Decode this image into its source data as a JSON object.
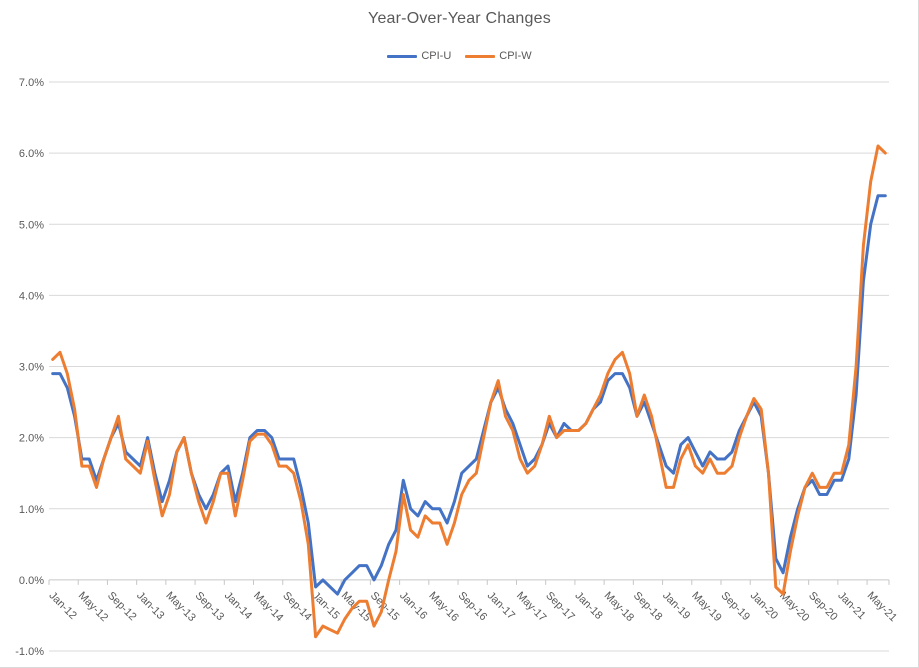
{
  "title": "Year-Over-Year Changes",
  "legend": {
    "items": [
      {
        "label": "CPI-U",
        "color": "#4472C4"
      },
      {
        "label": "CPI-W",
        "color": "#ED7D31"
      }
    ]
  },
  "colors": {
    "gridline": "#d9d9d9",
    "axis_line": "#c6c6c6",
    "tick_label": "#595959",
    "title_text": "#595959",
    "series_blue": "#4472C4",
    "series_orange": "#ED7D31"
  },
  "chart_data": {
    "type": "line",
    "title": "Year-Over-Year Changes",
    "xlabel": "",
    "ylabel": "",
    "grid": true,
    "legend_position": "top",
    "ylim": [
      -1.0,
      7.0
    ],
    "y_tick_values": [
      7,
      6,
      5,
      4,
      3,
      2,
      1,
      0,
      -1
    ],
    "y_tick_labels": [
      "7.0%",
      "6.0%",
      "5.0%",
      "4.0%",
      "3.0%",
      "2.0%",
      "1.0%",
      "0.0%",
      "-1.0%"
    ],
    "x_tick_every": 4,
    "x_tick_labels": [
      "Jan-12",
      "May-12",
      "Sep-12",
      "Jan-13",
      "May-13",
      "Sep-13",
      "Jan-14",
      "May-14",
      "Sep-14",
      "Jan-15",
      "May-15",
      "Sep-15",
      "Jan-16",
      "May-16",
      "Sep-16",
      "Jan-17",
      "May-17",
      "Sep-17",
      "Jan-18",
      "May-18",
      "Sep-18",
      "Jan-19",
      "May-19",
      "Sep-19",
      "Jan-20",
      "May-20",
      "Sep-20",
      "Jan-21",
      "May-21"
    ],
    "x": [
      "Jan-12",
      "Feb-12",
      "Mar-12",
      "Apr-12",
      "May-12",
      "Jun-12",
      "Jul-12",
      "Aug-12",
      "Sep-12",
      "Oct-12",
      "Nov-12",
      "Dec-12",
      "Jan-13",
      "Feb-13",
      "Mar-13",
      "Apr-13",
      "May-13",
      "Jun-13",
      "Jul-13",
      "Aug-13",
      "Sep-13",
      "Oct-13",
      "Nov-13",
      "Dec-13",
      "Jan-14",
      "Feb-14",
      "Mar-14",
      "Apr-14",
      "May-14",
      "Jun-14",
      "Jul-14",
      "Aug-14",
      "Sep-14",
      "Oct-14",
      "Nov-14",
      "Dec-14",
      "Jan-15",
      "Feb-15",
      "Mar-15",
      "Apr-15",
      "May-15",
      "Jun-15",
      "Jul-15",
      "Aug-15",
      "Sep-15",
      "Oct-15",
      "Nov-15",
      "Dec-15",
      "Jan-16",
      "Feb-16",
      "Mar-16",
      "Apr-16",
      "May-16",
      "Jun-16",
      "Jul-16",
      "Aug-16",
      "Sep-16",
      "Oct-16",
      "Nov-16",
      "Dec-16",
      "Jan-17",
      "Feb-17",
      "Mar-17",
      "Apr-17",
      "May-17",
      "Jun-17",
      "Jul-17",
      "Aug-17",
      "Sep-17",
      "Oct-17",
      "Nov-17",
      "Dec-17",
      "Jan-18",
      "Feb-18",
      "Mar-18",
      "Apr-18",
      "May-18",
      "Jun-18",
      "Jul-18",
      "Aug-18",
      "Sep-18",
      "Oct-18",
      "Nov-18",
      "Dec-18",
      "Jan-19",
      "Feb-19",
      "Mar-19",
      "Apr-19",
      "May-19",
      "Jun-19",
      "Jul-19",
      "Aug-19",
      "Sep-19",
      "Oct-19",
      "Nov-19",
      "Dec-19",
      "Jan-20",
      "Feb-20",
      "Mar-20",
      "Apr-20",
      "May-20",
      "Jun-20",
      "Jul-20",
      "Aug-20",
      "Sep-20",
      "Oct-20",
      "Nov-20",
      "Dec-20",
      "Jan-21",
      "Feb-21",
      "Mar-21",
      "Apr-21",
      "May-21",
      "Jun-21",
      "Jul-21"
    ],
    "series": [
      {
        "name": "CPI-U",
        "color": "#4472C4",
        "values": [
          2.9,
          2.9,
          2.7,
          2.3,
          1.7,
          1.7,
          1.4,
          1.7,
          2.0,
          2.2,
          1.8,
          1.7,
          1.6,
          2.0,
          1.5,
          1.1,
          1.4,
          1.8,
          2.0,
          1.5,
          1.2,
          1.0,
          1.2,
          1.5,
          1.6,
          1.1,
          1.5,
          2.0,
          2.1,
          2.1,
          2.0,
          1.7,
          1.7,
          1.7,
          1.3,
          0.8,
          -0.1,
          0.0,
          -0.1,
          -0.2,
          0.0,
          0.1,
          0.2,
          0.2,
          0.0,
          0.2,
          0.5,
          0.7,
          1.4,
          1.0,
          0.9,
          1.1,
          1.0,
          1.0,
          0.8,
          1.1,
          1.5,
          1.6,
          1.7,
          2.1,
          2.5,
          2.7,
          2.4,
          2.2,
          1.9,
          1.6,
          1.7,
          1.9,
          2.2,
          2.0,
          2.2,
          2.1,
          2.1,
          2.2,
          2.4,
          2.5,
          2.8,
          2.9,
          2.9,
          2.7,
          2.3,
          2.5,
          2.2,
          1.9,
          1.6,
          1.5,
          1.9,
          2.0,
          1.8,
          1.6,
          1.8,
          1.7,
          1.7,
          1.8,
          2.1,
          2.3,
          2.5,
          2.3,
          1.5,
          0.3,
          0.1,
          0.6,
          1.0,
          1.3,
          1.4,
          1.2,
          1.2,
          1.4,
          1.4,
          1.7,
          2.6,
          4.2,
          5.0,
          5.4,
          5.4
        ]
      },
      {
        "name": "CPI-W",
        "color": "#ED7D31",
        "values": [
          3.1,
          3.2,
          2.9,
          2.4,
          1.6,
          1.6,
          1.3,
          1.7,
          2.0,
          2.3,
          1.7,
          1.6,
          1.5,
          1.95,
          1.4,
          0.9,
          1.2,
          1.8,
          2.0,
          1.5,
          1.1,
          0.8,
          1.1,
          1.5,
          1.5,
          0.9,
          1.4,
          1.95,
          2.05,
          2.05,
          1.9,
          1.6,
          1.6,
          1.5,
          1.1,
          0.5,
          -0.8,
          -0.65,
          -0.7,
          -0.75,
          -0.55,
          -0.4,
          -0.3,
          -0.3,
          -0.65,
          -0.45,
          0.0,
          0.4,
          1.2,
          0.7,
          0.6,
          0.9,
          0.8,
          0.8,
          0.5,
          0.8,
          1.2,
          1.4,
          1.5,
          2.0,
          2.5,
          2.8,
          2.3,
          2.1,
          1.7,
          1.5,
          1.6,
          1.9,
          2.3,
          2.0,
          2.1,
          2.1,
          2.1,
          2.2,
          2.4,
          2.6,
          2.9,
          3.1,
          3.2,
          2.9,
          2.3,
          2.6,
          2.3,
          1.8,
          1.3,
          1.3,
          1.7,
          1.9,
          1.6,
          1.5,
          1.7,
          1.5,
          1.5,
          1.6,
          2.0,
          2.3,
          2.55,
          2.4,
          1.5,
          -0.1,
          -0.2,
          0.4,
          0.9,
          1.3,
          1.5,
          1.3,
          1.3,
          1.5,
          1.5,
          1.9,
          3.0,
          4.7,
          5.6,
          6.1,
          6.0
        ]
      }
    ]
  }
}
